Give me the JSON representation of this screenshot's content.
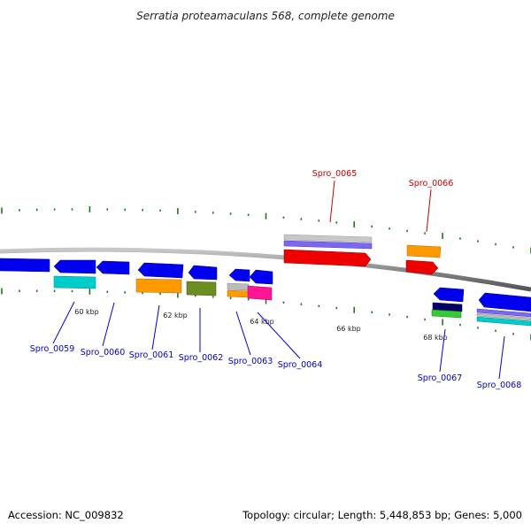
{
  "title": "Serratia proteamaculans 568, complete genome",
  "accession": "Accession: NC_009832",
  "summary": "Topology: circular; Length: 5,448,853 bp; Genes: 5,000",
  "colors": {
    "backbone": "#7f7f7f",
    "tick": "#1b7a1b",
    "label_forward": "#cc0000",
    "label_reverse": "#0000cc",
    "gene_blue": "#0000ee",
    "gene_red": "#ee0000",
    "gene_cyan": "#00cccc",
    "gene_orange": "#ff9900",
    "gene_olive": "#6b8e23",
    "gene_grey": "#bbbbbb",
    "gene_purple": "#7b68ee",
    "gene_pink": "#ff1493",
    "gene_navy": "#000066",
    "gene_green": "#33cc33"
  },
  "scale_labels": [
    "60 kbp",
    "62 kbp",
    "64 kbp",
    "66 kbp",
    "68 kbp"
  ],
  "gene_labels": {
    "spro_0059": "Spro_0059",
    "spro_0060": "Spro_0060",
    "spro_0061": "Spro_0061",
    "spro_0062": "Spro_0062",
    "spro_0063": "Spro_0063",
    "spro_0064": "Spro_0064",
    "spro_0065": "Spro_0065",
    "spro_0066": "Spro_0066",
    "spro_0067": "Spro_0067",
    "spro_0068": "Spro_0068"
  }
}
